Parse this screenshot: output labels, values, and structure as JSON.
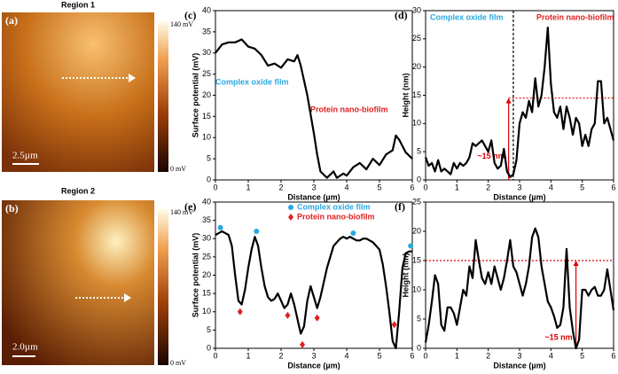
{
  "images": [
    {
      "label": "(a)",
      "title": "Region 1",
      "scale_bar": "2.5µm",
      "colorbar_max": "140 mV",
      "colorbar_min": "0 mV"
    },
    {
      "label": "(b)",
      "title": "Region 2",
      "scale_bar": "2.0µm",
      "colorbar_max": "140 mV",
      "colorbar_min": "0 mV"
    }
  ],
  "chart_data": [
    {
      "type": "line",
      "panel_label": "(c)",
      "xlabel": "Distance (µm)",
      "ylabel": "Surface potential (mV)",
      "xlim": [
        0,
        6
      ],
      "ylim": [
        0,
        40
      ],
      "xticks": [
        0,
        1,
        2,
        3,
        4,
        5,
        6
      ],
      "yticks": [
        0,
        5,
        10,
        15,
        20,
        25,
        30,
        35,
        40
      ],
      "annotations": [
        {
          "text": "Complex oxide film",
          "color": "#29a8e0"
        },
        {
          "text": "Protein nano-biofilm",
          "color": "#e02020"
        }
      ],
      "series": [
        {
          "color": "#000000",
          "x": [
            0,
            0.2,
            0.4,
            0.6,
            0.8,
            1,
            1.2,
            1.4,
            1.6,
            1.8,
            2,
            2.2,
            2.4,
            2.5,
            2.6,
            2.8,
            3,
            3.1,
            3.2,
            3.4,
            3.6,
            3.7,
            3.9,
            4,
            4.2,
            4.4,
            4.6,
            4.8,
            5,
            5.2,
            5.4,
            5.5,
            5.6,
            5.8,
            6
          ],
          "values": [
            30,
            32,
            32.5,
            32.5,
            33.2,
            31.5,
            31,
            29.5,
            27,
            27.5,
            26.5,
            28.5,
            28,
            29.5,
            27,
            20,
            11,
            6,
            2,
            0.5,
            2,
            0.5,
            1.5,
            1,
            3,
            4,
            2.5,
            5,
            3.5,
            6,
            7,
            10.5,
            9.5,
            6.5,
            5
          ]
        }
      ]
    },
    {
      "type": "line",
      "panel_label": "(d)",
      "xlabel": "Distance (µm)",
      "ylabel": "Height (nm)",
      "xlim": [
        0,
        6
      ],
      "ylim": [
        0,
        30
      ],
      "xticks": [
        0,
        1,
        2,
        3,
        4,
        5,
        6
      ],
      "yticks": [
        0,
        5,
        10,
        15,
        20,
        25,
        30
      ],
      "vline": 2.8,
      "hline": 14.5,
      "hline_label": "~15 nm",
      "annotations": [
        {
          "text": "Complex oxide film",
          "color": "#29a8e0"
        },
        {
          "text": "Protein nano-biofilm",
          "color": "#e02020"
        }
      ],
      "series": [
        {
          "color": "#000000",
          "x": [
            0,
            0.1,
            0.2,
            0.3,
            0.4,
            0.5,
            0.6,
            0.7,
            0.8,
            0.9,
            1,
            1.1,
            1.2,
            1.3,
            1.4,
            1.5,
            1.6,
            1.7,
            1.8,
            1.9,
            2,
            2.1,
            2.2,
            2.3,
            2.4,
            2.5,
            2.6,
            2.7,
            2.8,
            2.9,
            3,
            3.1,
            3.2,
            3.3,
            3.4,
            3.5,
            3.6,
            3.7,
            3.8,
            3.9,
            4,
            4.1,
            4.2,
            4.3,
            4.4,
            4.5,
            4.6,
            4.7,
            4.8,
            4.9,
            5,
            5.1,
            5.2,
            5.3,
            5.4,
            5.5,
            5.6,
            5.7,
            5.8,
            5.9,
            6
          ],
          "values": [
            4,
            2.5,
            3,
            1.5,
            3.5,
            1.5,
            2,
            1.5,
            1,
            3,
            2,
            3,
            2.5,
            3,
            4,
            6.5,
            6,
            6.5,
            7,
            6,
            5,
            7,
            3,
            2,
            2.5,
            5.5,
            1.5,
            0.5,
            1,
            3.5,
            10,
            12,
            11,
            14,
            12,
            18,
            13,
            15,
            20,
            27,
            17,
            12,
            11,
            13,
            9,
            13,
            11,
            8,
            11,
            10,
            6,
            8,
            6,
            9,
            10,
            17.5,
            17.5,
            10,
            11,
            9,
            7
          ]
        }
      ]
    },
    {
      "type": "line",
      "panel_label": "(e)",
      "xlabel": "Distance (µm)",
      "ylabel": "Surface potential (mV)",
      "xlim": [
        0,
        6
      ],
      "ylim": [
        0,
        40
      ],
      "xticks": [
        0,
        1,
        2,
        3,
        4,
        5,
        6
      ],
      "yticks": [
        0,
        5,
        10,
        15,
        20,
        25,
        30,
        35,
        40
      ],
      "series": [
        {
          "color": "#000000",
          "x": [
            0,
            0.1,
            0.2,
            0.3,
            0.4,
            0.5,
            0.6,
            0.7,
            0.8,
            0.9,
            1,
            1.1,
            1.2,
            1.3,
            1.4,
            1.5,
            1.6,
            1.7,
            1.8,
            1.9,
            2,
            2.1,
            2.2,
            2.3,
            2.4,
            2.5,
            2.6,
            2.7,
            2.8,
            2.9,
            3,
            3.1,
            3.2,
            3.3,
            3.4,
            3.5,
            3.6,
            3.7,
            3.8,
            3.9,
            4,
            4.1,
            4.2,
            4.3,
            4.4,
            4.5,
            4.6,
            4.7,
            4.8,
            4.9,
            5,
            5.1,
            5.2,
            5.3,
            5.4,
            5.5,
            5.6,
            5.7,
            5.8,
            5.9,
            6
          ],
          "values": [
            31,
            31.5,
            32,
            31.5,
            31,
            28,
            20,
            13,
            12,
            16,
            22,
            27,
            30.5,
            28,
            22,
            17,
            14,
            13,
            13.5,
            15,
            13,
            11,
            12,
            15,
            12,
            8,
            4,
            6,
            13,
            17,
            14,
            11,
            14,
            18,
            22,
            25,
            28,
            29,
            30,
            30.5,
            30,
            30.5,
            30,
            29.5,
            29.5,
            30,
            30,
            29.5,
            29,
            28,
            27,
            23,
            17,
            10,
            2,
            0,
            10,
            22,
            26,
            26.5,
            26.5
          ]
        },
        {
          "name": "Complex oxide film",
          "marker": "circle",
          "color": "#29a8e0",
          "x": [
            0.15,
            1.25,
            4.2,
            5.95
          ],
          "values": [
            33,
            32,
            31.5,
            28
          ]
        },
        {
          "name": "Protein nano-biofilm",
          "marker": "diamond",
          "color": "#e02020",
          "x": [
            0.75,
            2.2,
            2.65,
            3.1,
            5.45
          ],
          "values": [
            10,
            9,
            1,
            8.3,
            6.5
          ]
        }
      ]
    },
    {
      "type": "line",
      "panel_label": "(f)",
      "xlabel": "Distance (µm)",
      "ylabel": "Height (nm)",
      "xlim": [
        0,
        6
      ],
      "ylim": [
        0,
        25
      ],
      "xticks": [
        0,
        1,
        2,
        3,
        4,
        5,
        6
      ],
      "yticks": [
        0,
        5,
        10,
        15,
        20,
        25
      ],
      "hline": 15,
      "hline_label": "~15 nm",
      "arrow_x": 4.8,
      "series": [
        {
          "color": "#000000",
          "x": [
            0,
            0.1,
            0.2,
            0.3,
            0.4,
            0.5,
            0.6,
            0.7,
            0.8,
            0.9,
            1,
            1.1,
            1.2,
            1.3,
            1.4,
            1.5,
            1.6,
            1.7,
            1.8,
            1.9,
            2,
            2.1,
            2.2,
            2.3,
            2.4,
            2.5,
            2.6,
            2.7,
            2.8,
            2.9,
            3,
            3.1,
            3.2,
            3.3,
            3.4,
            3.5,
            3.6,
            3.7,
            3.8,
            3.9,
            4,
            4.1,
            4.2,
            4.3,
            4.4,
            4.5,
            4.6,
            4.7,
            4.8,
            4.9,
            5,
            5.1,
            5.2,
            5.3,
            5.4,
            5.5,
            5.6,
            5.7,
            5.8,
            5.9,
            6
          ],
          "values": [
            1,
            4,
            8,
            12.5,
            11,
            4,
            3,
            7,
            7,
            6,
            4,
            7,
            10,
            9,
            14,
            12,
            18.5,
            15,
            12,
            11,
            13,
            11,
            14,
            12,
            10,
            12,
            15,
            18.5,
            14,
            13,
            11,
            9,
            11,
            14,
            19,
            20.5,
            19,
            14,
            11,
            8,
            7,
            5.5,
            3.5,
            4,
            7,
            17,
            7,
            3,
            0,
            1.5,
            10,
            10,
            9,
            10,
            10.5,
            9,
            9,
            10,
            13.5,
            10,
            6.5
          ]
        }
      ]
    }
  ]
}
